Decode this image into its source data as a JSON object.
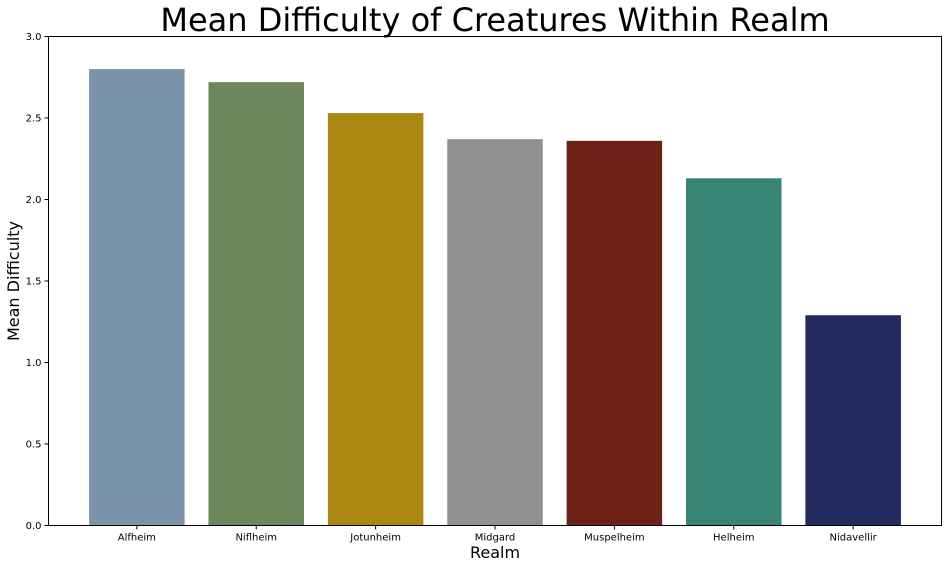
{
  "chart_data": {
    "type": "bar",
    "title": "Mean Difficulty of Creatures Within Realm",
    "xlabel": "Realm",
    "ylabel": "Mean Difficulty",
    "categories": [
      "Alfheim",
      "Niflheim",
      "Jotunheim",
      "Midgard",
      "Muspelheim",
      "Helheim",
      "Nidavellir"
    ],
    "values": [
      2.8,
      2.72,
      2.53,
      2.37,
      2.36,
      2.13,
      1.29
    ],
    "colors": [
      "#7b93ab",
      "#6e885e",
      "#aa8711",
      "#909090",
      "#6e2118",
      "#368577",
      "#222a5e"
    ],
    "ylim": [
      0,
      3.0
    ],
    "yticks": [
      "0.0",
      "0.5",
      "1.0",
      "1.5",
      "2.0",
      "2.5",
      "3.0"
    ],
    "grid": false,
    "legend": "none"
  }
}
